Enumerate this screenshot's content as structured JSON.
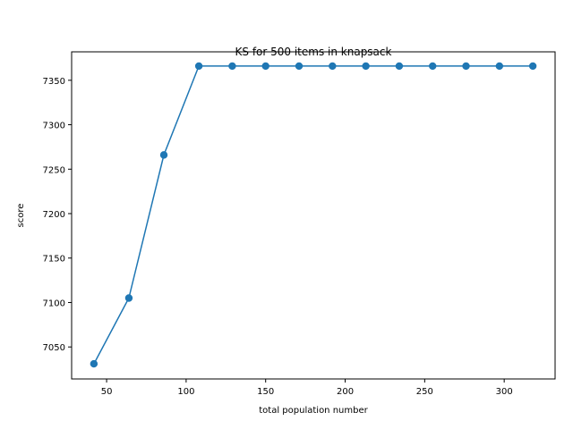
{
  "chart_data": {
    "type": "line",
    "title": "KS for 500 items in knapsack",
    "xlabel": "total population number",
    "ylabel": "score",
    "xlim": [
      28,
      332
    ],
    "ylim": [
      7014,
      7382
    ],
    "xticks": [
      50,
      100,
      150,
      200,
      250,
      300
    ],
    "yticks": [
      7050,
      7100,
      7150,
      7200,
      7250,
      7300,
      7350
    ],
    "grid": false,
    "series": [
      {
        "color": "#1f77b4",
        "marker": "circle",
        "x": [
          42,
          64,
          86,
          108,
          129,
          150,
          171,
          192,
          213,
          234,
          255,
          276,
          297,
          318
        ],
        "values": [
          7031,
          7105,
          7266,
          7366,
          7366,
          7366,
          7366,
          7366,
          7366,
          7366,
          7366,
          7366,
          7366,
          7366
        ]
      }
    ]
  }
}
